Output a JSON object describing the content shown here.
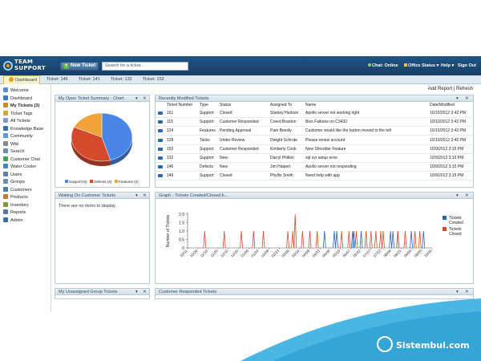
{
  "app": {
    "logo_line1": "TEAM",
    "logo_line2": "SUPPORT"
  },
  "toolbar": {
    "new_ticket_label": "New Ticket",
    "search_placeholder": "Search for a ticket...",
    "chat_status": "Chat: Online",
    "office_status": "Office Status",
    "help": "Help",
    "signout": "Sign Out"
  },
  "tabs": [
    {
      "label": "Dashboard"
    },
    {
      "label": "Ticket: 146"
    },
    {
      "label": "Ticket: 141"
    },
    {
      "label": "Ticket: 132"
    },
    {
      "label": "Ticket: 152"
    }
  ],
  "sidebar": {
    "items": [
      {
        "label": "Welcome",
        "color": "#5a8fd6"
      },
      {
        "label": "Dashboard",
        "color": "#3a7bc8"
      },
      {
        "label": "My Tickets (3)",
        "color": "#c98b2e"
      },
      {
        "label": "Ticket Tags",
        "color": "#d9a441"
      },
      {
        "label": "All Tickets",
        "color": "#7a9cc6"
      },
      {
        "label": "Knowledge Base",
        "color": "#3d6fa8"
      },
      {
        "label": "Community",
        "color": "#5b9bd5"
      },
      {
        "label": "Wiki",
        "color": "#8a8a8a"
      },
      {
        "label": "Search",
        "color": "#6a8fb5"
      },
      {
        "label": "Customer Chat",
        "color": "#4a9c5a"
      },
      {
        "label": "Water Cooler",
        "color": "#3a86c9"
      },
      {
        "label": "Users",
        "color": "#5c7fa8"
      },
      {
        "label": "Groups",
        "color": "#6b8db5"
      },
      {
        "label": "Customers",
        "color": "#4a7ab0"
      },
      {
        "label": "Products",
        "color": "#c9782e"
      },
      {
        "label": "Inventory",
        "color": "#7b9a3a"
      },
      {
        "label": "Reports",
        "color": "#5a7ba6"
      },
      {
        "label": "Admin",
        "color": "#3e6ea3"
      }
    ]
  },
  "header_links": {
    "add_report": "Add Report",
    "separator": "|",
    "refresh": "Refresh"
  },
  "panels": {
    "open_summary": {
      "title": "My Open Ticket Summary - Chart"
    },
    "recently_modified": {
      "title": "Recently Modified Tickets"
    },
    "waiting": {
      "title": "Waiting On Customer Tickets",
      "empty": "There are no items to display."
    },
    "graph": {
      "title": "Graph - Tickets Created/Closed b..."
    },
    "unassigned": {
      "title": "My Unassigned Group Tickets"
    },
    "customer_responded": {
      "title": "Customer Responded Tickets"
    }
  },
  "table": {
    "headers": [
      "Ticket Number",
      "Type",
      "Status",
      "Assigned To",
      "Name",
      "Date/Modified"
    ],
    "rows": [
      [
        "151",
        "Support",
        "Closed",
        "Stanley Hudson",
        "Apollo server not working right",
        "10/10/2012 3:42 PM"
      ],
      [
        "115",
        "Support",
        "Customer Responded",
        "Creed Branton",
        "Bios Failures on C3432",
        "10/10/2012 3:42 PM"
      ],
      [
        "124",
        "Features",
        "Pending Approval",
        "Pam Beesly",
        "Customer would like the button moved to the left",
        "10/10/2012 3:42 PM"
      ],
      [
        "128",
        "Tasks",
        "Under Review",
        "Dwight Schrute",
        "Please renew account",
        "10/10/2012 3:42 PM"
      ],
      [
        "152",
        "Support",
        "Customer Responded",
        "Kimberly Cook",
        "New Shredder Feature",
        "10/9/2012 3:15 PM"
      ],
      [
        "132",
        "Support",
        "New",
        "Darryl Philbin",
        "sql svr setup error",
        "10/9/2012 3:15 PM"
      ],
      [
        "146",
        "Defects",
        "New",
        "Jim Halpert",
        "Apollo server not responding",
        "10/9/2012 3:15 PM"
      ],
      [
        "149",
        "Support",
        "Closed",
        "Phyllis Smith",
        "Need help with app",
        "10/9/2012 3:15 PM"
      ]
    ]
  },
  "chart_data": [
    {
      "type": "pie",
      "categories": [
        "Support",
        "Defects",
        "Features"
      ],
      "values": [
        5,
        4,
        2
      ],
      "legend_labels": [
        "Support (5)",
        "Defects (4)",
        "Features (2)"
      ],
      "colors": [
        "#4a86e8",
        "#d64a2c",
        "#f2a23a"
      ],
      "legend": "bottom"
    },
    {
      "type": "line",
      "ylabel": "Number of Tickets",
      "ylim": [
        0,
        2.0
      ],
      "yticks": [
        "0",
        "0.5",
        "1.0",
        "1.5",
        "2.0"
      ],
      "xticks": [
        "10/11",
        "10/26",
        "11/10",
        "11/25",
        "12/10",
        "12/25",
        "01/09",
        "01/24",
        "02/08",
        "02/23",
        "03/09",
        "03/24",
        "04/08",
        "04/23",
        "05/08",
        "05/23",
        "06/07",
        "06/22",
        "07/07",
        "07/22",
        "08/06",
        "08/21",
        "09/05",
        "09/20",
        "10/05"
      ],
      "legend": "right",
      "series": [
        {
          "name": "Tickets Created",
          "color": "#2e62b8",
          "spikes": [
            [
              0.56,
              1
            ],
            [
              0.6,
              1
            ],
            [
              0.61,
              1
            ],
            [
              0.675,
              1
            ],
            [
              0.68,
              1
            ],
            [
              0.71,
              1
            ],
            [
              0.83,
              1
            ],
            [
              0.84,
              1
            ],
            [
              0.86,
              1
            ],
            [
              0.915,
              1
            ],
            [
              0.965,
              1
            ]
          ]
        },
        {
          "name": "Tickets Closed",
          "color": "#d64a2c",
          "spikes": [
            [
              0.07,
              1
            ],
            [
              0.15,
              1
            ],
            [
              0.22,
              1
            ],
            [
              0.27,
              1
            ],
            [
              0.31,
              1
            ],
            [
              0.41,
              1
            ],
            [
              0.43,
              1
            ],
            [
              0.44,
              2
            ],
            [
              0.47,
              1
            ],
            [
              0.5,
              1
            ],
            [
              0.53,
              1
            ],
            [
              0.63,
              1
            ],
            [
              0.66,
              1
            ],
            [
              0.69,
              1
            ],
            [
              0.73,
              1
            ],
            [
              0.75,
              1
            ],
            [
              0.77,
              1
            ],
            [
              0.79,
              1
            ],
            [
              0.8,
              1
            ],
            [
              0.86,
              1
            ],
            [
              0.89,
              1
            ],
            [
              0.93,
              1
            ],
            [
              0.95,
              1
            ]
          ]
        }
      ]
    }
  ],
  "watermark": {
    "text": "Sistembul.com"
  }
}
